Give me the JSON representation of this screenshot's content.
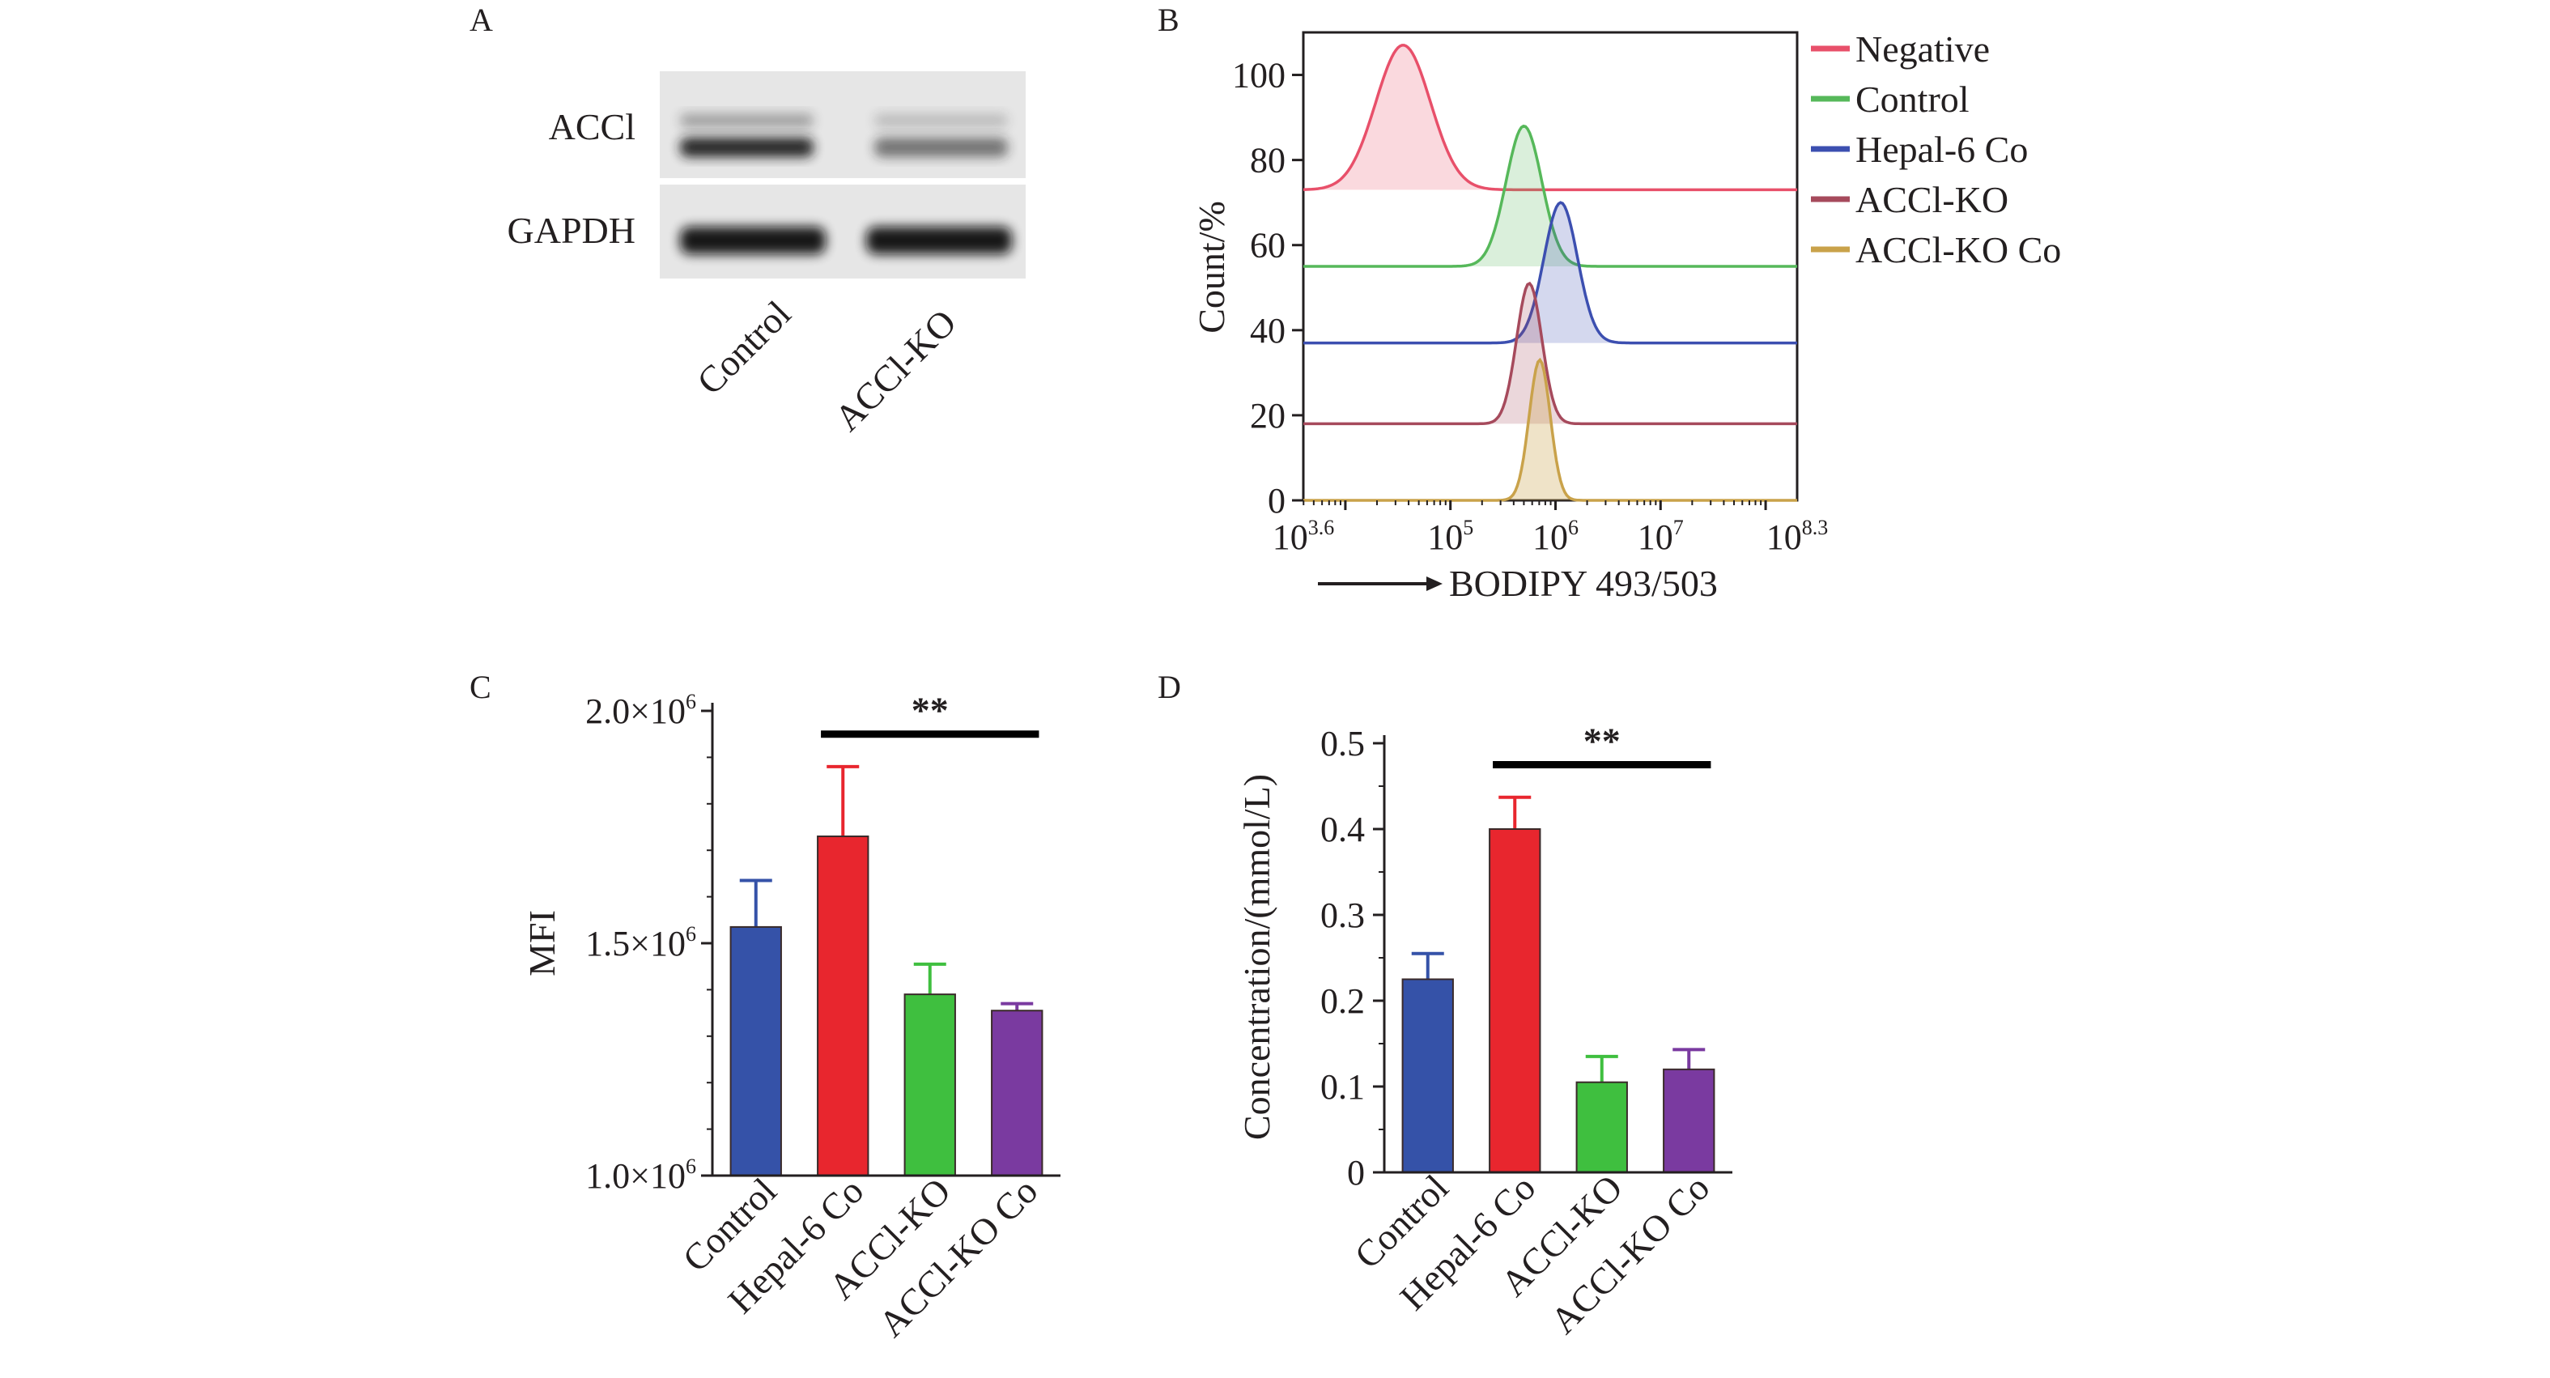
{
  "panels": {
    "A": {
      "letter": "A",
      "blot_rows": [
        "ACCl",
        "GAPDH"
      ],
      "lanes": [
        "Control",
        "ACCl-KO"
      ],
      "band_intensity": {
        "ACCl": [
          1.0,
          0.45
        ],
        "GAPDH": [
          1.0,
          1.0
        ]
      }
    },
    "B": {
      "letter": "B",
      "ylabel": "Count/%",
      "xlabel": "BODIPY 493/503",
      "x_arrow": true,
      "x_scale": "log10",
      "xlim_log10": [
        3.6,
        8.3
      ],
      "ylim": [
        0,
        110
      ],
      "yticks": [
        "0",
        "20",
        "40",
        "60",
        "80",
        "100"
      ],
      "xtick_labels": [
        {
          "base": "10",
          "exp": "3.6",
          "log10": 3.6
        },
        {
          "base": "10",
          "exp": "5",
          "log10": 5
        },
        {
          "base": "10",
          "exp": "6",
          "log10": 6
        },
        {
          "base": "10",
          "exp": "7",
          "log10": 7
        },
        {
          "base": "10",
          "exp": "8.3",
          "log10": 8.3
        }
      ],
      "legend_position": "right",
      "legend": [
        "Negative",
        "Control",
        "Hepal-6 Co",
        "ACCl-KO",
        "ACCl-KO Co"
      ]
    },
    "C": {
      "letter": "C",
      "ylabel": "MFI",
      "yticks": [
        {
          "mantissa": "1.0",
          "times": "×",
          "base": "10",
          "exp": "6"
        },
        {
          "mantissa": "1.5",
          "times": "×",
          "base": "10",
          "exp": "6"
        },
        {
          "mantissa": "2.0",
          "times": "×",
          "base": "10",
          "exp": "6"
        }
      ],
      "categories": [
        "Control",
        "Hepal-6 Co",
        "ACCl-KO",
        "ACCl-KO Co"
      ],
      "significance": "**"
    },
    "D": {
      "letter": "D",
      "ylabel": "Concentration/(mmol/L)",
      "yticks": [
        "0",
        "0.1",
        "0.2",
        "0.3",
        "0.4",
        "0.5"
      ],
      "categories": [
        "Control",
        "Hepal-6 Co",
        "ACCl-KO",
        "ACCl-KO Co"
      ],
      "significance": "**"
    }
  },
  "colors": {
    "negative": "#e8506a",
    "control_line": "#56b85a",
    "hepal_line": "#3c4fb0",
    "acclko_line": "#a64a5c",
    "acclko_co_line": "#c9a24a",
    "bar_control": "#3552a8",
    "bar_hepal": "#e8262e",
    "bar_acclko": "#3fbf3f",
    "bar_acclko_co": "#7a3aa0",
    "axis": "#231f20"
  },
  "chart_data": [
    {
      "panel": "B",
      "type": "line",
      "title": "",
      "xlabel": "BODIPY 493/503",
      "ylabel": "Count/%",
      "x_scale": "log10",
      "xlim_log10": [
        3.6,
        8.3
      ],
      "ylim": [
        0,
        110
      ],
      "grid": false,
      "legend_position": "right",
      "series": [
        {
          "name": "Negative",
          "baseline": 73,
          "peak_log10": 4.55,
          "peak_y": 107,
          "width_log10": 0.26,
          "fill_alpha": 0.22
        },
        {
          "name": "Control",
          "baseline": 55,
          "peak_log10": 5.7,
          "peak_y": 88,
          "width_log10": 0.17,
          "fill_alpha": 0.22
        },
        {
          "name": "Hepal-6 Co",
          "baseline": 37,
          "peak_log10": 6.05,
          "peak_y": 70,
          "width_log10": 0.16,
          "fill_alpha": 0.22
        },
        {
          "name": "ACCl-KO",
          "baseline": 18,
          "peak_log10": 5.75,
          "peak_y": 51,
          "width_log10": 0.12,
          "fill_alpha": 0.22
        },
        {
          "name": "ACCl-KO Co",
          "baseline": 0,
          "peak_log10": 5.85,
          "peak_y": 33,
          "width_log10": 0.1,
          "fill_alpha": 0.3
        }
      ]
    },
    {
      "panel": "C",
      "type": "bar",
      "title": "",
      "xlabel": "",
      "ylabel": "MFI",
      "ylim": [
        1000000,
        2000000
      ],
      "grid": false,
      "categories": [
        "Control",
        "Hepal-6 Co",
        "ACCl-KO",
        "ACCl-KO Co"
      ],
      "values": [
        1535000,
        1730000,
        1390000,
        1355000
      ],
      "errors": [
        100000,
        150000,
        65000,
        15000
      ],
      "significance": {
        "from": 1,
        "to": 3,
        "label": "**",
        "y": 1950000
      }
    },
    {
      "panel": "D",
      "type": "bar",
      "title": "",
      "xlabel": "",
      "ylabel": "Concentration/(mmol/L)",
      "ylim": [
        0,
        0.5
      ],
      "grid": false,
      "categories": [
        "Control",
        "Hepal-6 Co",
        "ACCl-KO",
        "ACCl-KO Co"
      ],
      "values": [
        0.225,
        0.4,
        0.105,
        0.12
      ],
      "errors": [
        0.03,
        0.037,
        0.03,
        0.023
      ],
      "significance": {
        "from": 1,
        "to": 3,
        "label": "**",
        "y": 0.475
      }
    }
  ]
}
